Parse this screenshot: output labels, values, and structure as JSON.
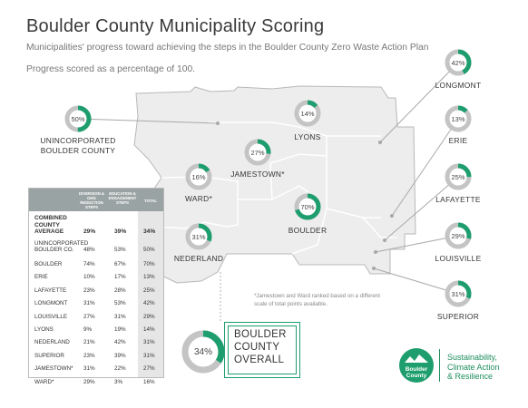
{
  "title": "Boulder County Municipality Scoring",
  "subtitle": "Municipalities' progress toward achieving the steps in the Boulder County Zero Waste Action Plan",
  "scale_note": "Progress scored as a percentage of 100.",
  "footnote": "*Jamestown and Ward ranked based on a different scale of total points available.",
  "overall": {
    "label_lines": [
      "BOULDER",
      "COUNTY",
      "OVERALL"
    ],
    "value": 34,
    "label": "34%"
  },
  "colors": {
    "accent": "#1e9e6e",
    "ring_bg": "#c4c4c4",
    "map_border": "#b8b8b8",
    "leader": "#a8a8a8"
  },
  "chart_data": {
    "type": "pie",
    "description_none": "",
    "places": [
      {
        "name": "UNINCORPORATED BOULDER COUNTY",
        "label_lines": [
          "UNINCORPORATED",
          "BOULDER COUNTY"
        ],
        "value": 50,
        "label": "50%"
      },
      {
        "name": "LYONS",
        "label_lines": [
          "LYONS"
        ],
        "value": 14,
        "label": "14%"
      },
      {
        "name": "JAMESTOWN*",
        "label_lines": [
          "JAMESTOWN*"
        ],
        "value": 27,
        "label": "27%"
      },
      {
        "name": "WARD*",
        "label_lines": [
          "WARD*"
        ],
        "value": 16,
        "label": "16%"
      },
      {
        "name": "BOULDER",
        "label_lines": [
          "BOULDER"
        ],
        "value": 70,
        "label": "70%"
      },
      {
        "name": "NEDERLAND",
        "label_lines": [
          "NEDERLAND"
        ],
        "value": 31,
        "label": "31%"
      },
      {
        "name": "LONGMONT",
        "label_lines": [
          "LONGMONT"
        ],
        "value": 42,
        "label": "42%"
      },
      {
        "name": "ERIE",
        "label_lines": [
          "ERIE"
        ],
        "value": 13,
        "label": "13%"
      },
      {
        "name": "LAFAYETTE",
        "label_lines": [
          "LAFAYETTE"
        ],
        "value": 25,
        "label": "25%"
      },
      {
        "name": "LOUISVILLE",
        "label_lines": [
          "LOUISVILLE"
        ],
        "value": 29,
        "label": "29%"
      },
      {
        "name": "SUPERIOR",
        "label_lines": [
          "SUPERIOR"
        ],
        "value": 31,
        "label": "31%"
      }
    ]
  },
  "table": {
    "headers": [
      "DIVERSION & GHG REDUCTION STEPS",
      "EDUCATION & ENGAGEMENT STEPS",
      "TOTAL"
    ],
    "average": {
      "name_lines": [
        "COMBINED",
        "COUNTY",
        "AVERAGE"
      ],
      "values": [
        "29%",
        "39%",
        "34%"
      ]
    },
    "rows": [
      {
        "name_lines": [
          "UNINCORPORATED",
          "BOULDER CO."
        ],
        "values": [
          "48%",
          "53%",
          "50%"
        ]
      },
      {
        "name_lines": [
          "BOULDER"
        ],
        "values": [
          "74%",
          "67%",
          "70%"
        ]
      },
      {
        "name_lines": [
          "ERIE"
        ],
        "values": [
          "10%",
          "17%",
          "13%"
        ]
      },
      {
        "name_lines": [
          "LAFAYETTE"
        ],
        "values": [
          "23%",
          "28%",
          "25%"
        ]
      },
      {
        "name_lines": [
          "LONGMONT"
        ],
        "values": [
          "31%",
          "53%",
          "42%"
        ]
      },
      {
        "name_lines": [
          "LOUISVILLE"
        ],
        "values": [
          "27%",
          "31%",
          "29%"
        ]
      },
      {
        "name_lines": [
          "LYONS"
        ],
        "values": [
          "9%",
          "19%",
          "14%"
        ]
      },
      {
        "name_lines": [
          "NEDERLAND"
        ],
        "values": [
          "21%",
          "42%",
          "31%"
        ]
      },
      {
        "name_lines": [
          "SUPERIOR"
        ],
        "values": [
          "23%",
          "39%",
          "31%"
        ]
      },
      {
        "name_lines": [
          "JAMESTOWN*"
        ],
        "values": [
          "31%",
          "22%",
          "27%"
        ]
      },
      {
        "name_lines": [
          "WARD*"
        ],
        "values": [
          "29%",
          "3%",
          "16%"
        ]
      }
    ]
  },
  "logo": {
    "badge_lines": [
      "Boulder",
      "County"
    ],
    "text_lines": [
      "Sustainability,",
      "Climate Action",
      "& Resilience"
    ]
  }
}
